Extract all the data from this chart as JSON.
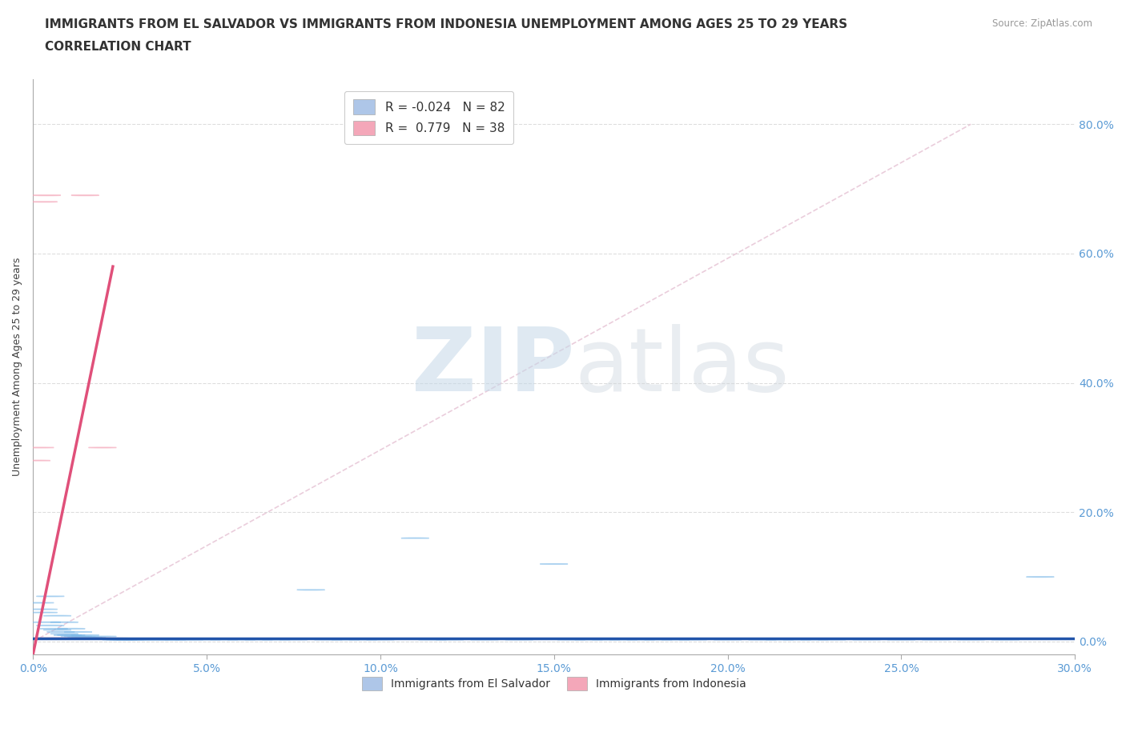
{
  "title_line1": "IMMIGRANTS FROM EL SALVADOR VS IMMIGRANTS FROM INDONESIA UNEMPLOYMENT AMONG AGES 25 TO 29 YEARS",
  "title_line2": "CORRELATION CHART",
  "source_text": "Source: ZipAtlas.com",
  "ylabel_label": "Unemployment Among Ages 25 to 29 years",
  "xmin": 0.0,
  "xmax": 0.3,
  "ymin": -0.02,
  "ymax": 0.87,
  "watermark_zip": "ZIP",
  "watermark_atlas": "atlas",
  "legend_bottom": [
    {
      "label": "Immigrants from El Salvador",
      "color": "#aec6e8"
    },
    {
      "label": "Immigrants from Indonesia",
      "color": "#f4a7b9"
    }
  ],
  "el_salvador_color": "#7ab8e8",
  "indonesia_color": "#f4a7b9",
  "el_salvador_trend_color": "#2255aa",
  "indonesia_trend_color": "#e0507a",
  "diagonal_color": "#e8c8d8",
  "R_salvador": -0.024,
  "N_salvador": 82,
  "R_indonesia": 0.779,
  "N_indonesia": 38,
  "title_fontsize": 11,
  "axis_label_fontsize": 9,
  "tick_fontsize": 10,
  "tick_color": "#5b9bd5",
  "grid_color": "#dddddd",
  "background_color": "#ffffff",
  "legend_R_color": "#e05070",
  "legend_N_color": "#3060c0",
  "x_ticks": [
    0.0,
    0.05,
    0.1,
    0.15,
    0.2,
    0.25,
    0.3
  ],
  "y_ticks": [
    0.0,
    0.2,
    0.4,
    0.6,
    0.8
  ],
  "el_salvador_points_x": [
    0.002,
    0.003,
    0.004,
    0.005,
    0.006,
    0.007,
    0.008,
    0.009,
    0.01,
    0.011,
    0.012,
    0.013,
    0.014,
    0.015,
    0.016,
    0.017,
    0.018,
    0.019,
    0.02,
    0.021,
    0.022,
    0.023,
    0.024,
    0.025,
    0.026,
    0.027,
    0.028,
    0.03,
    0.032,
    0.035,
    0.038,
    0.04,
    0.042,
    0.045,
    0.05,
    0.055,
    0.06,
    0.065,
    0.07,
    0.075,
    0.08,
    0.085,
    0.09,
    0.095,
    0.1,
    0.11,
    0.115,
    0.12,
    0.13,
    0.14,
    0.15,
    0.155,
    0.16,
    0.165,
    0.17,
    0.175,
    0.18,
    0.185,
    0.19,
    0.2,
    0.21,
    0.215,
    0.22,
    0.225,
    0.23,
    0.24,
    0.25,
    0.26,
    0.27,
    0.28,
    0.003,
    0.005,
    0.007,
    0.009,
    0.011,
    0.013,
    0.015,
    0.02,
    0.025,
    0.03,
    0.035,
    0.29
  ],
  "el_salvador_points_y": [
    0.06,
    0.045,
    0.03,
    0.025,
    0.02,
    0.018,
    0.015,
    0.012,
    0.01,
    0.01,
    0.008,
    0.008,
    0.007,
    0.007,
    0.006,
    0.006,
    0.005,
    0.005,
    0.005,
    0.005,
    0.004,
    0.004,
    0.003,
    0.003,
    0.003,
    0.003,
    0.003,
    0.003,
    0.003,
    0.003,
    0.003,
    0.003,
    0.003,
    0.003,
    0.003,
    0.003,
    0.003,
    0.003,
    0.003,
    0.003,
    0.08,
    0.003,
    0.003,
    0.003,
    0.003,
    0.16,
    0.003,
    0.003,
    0.003,
    0.003,
    0.12,
    0.003,
    0.003,
    0.003,
    0.003,
    0.003,
    0.003,
    0.003,
    0.003,
    0.003,
    0.003,
    0.003,
    0.003,
    0.003,
    0.003,
    0.003,
    0.003,
    0.003,
    0.003,
    0.003,
    0.05,
    0.07,
    0.04,
    0.03,
    0.02,
    0.015,
    0.01,
    0.008,
    0.005,
    0.004,
    0.004,
    0.1
  ],
  "indonesia_points_x": [
    0.001,
    0.002,
    0.003,
    0.003,
    0.004,
    0.005,
    0.005,
    0.006,
    0.006,
    0.007,
    0.007,
    0.008,
    0.008,
    0.009,
    0.009,
    0.01,
    0.01,
    0.011,
    0.012,
    0.013,
    0.013,
    0.014,
    0.015,
    0.016,
    0.017,
    0.018,
    0.02,
    0.02,
    0.021,
    0.022,
    0.023,
    0.025,
    0.001,
    0.002,
    0.003,
    0.004,
    0.015,
    0.02
  ],
  "indonesia_points_y": [
    0.005,
    0.005,
    0.005,
    0.005,
    0.005,
    0.005,
    0.005,
    0.005,
    0.005,
    0.005,
    0.005,
    0.005,
    0.005,
    0.005,
    0.005,
    0.005,
    0.005,
    0.005,
    0.005,
    0.005,
    0.005,
    0.005,
    0.005,
    0.005,
    0.005,
    0.005,
    0.005,
    0.005,
    0.005,
    0.005,
    0.005,
    0.005,
    0.28,
    0.3,
    0.68,
    0.69,
    0.69,
    0.3
  ]
}
